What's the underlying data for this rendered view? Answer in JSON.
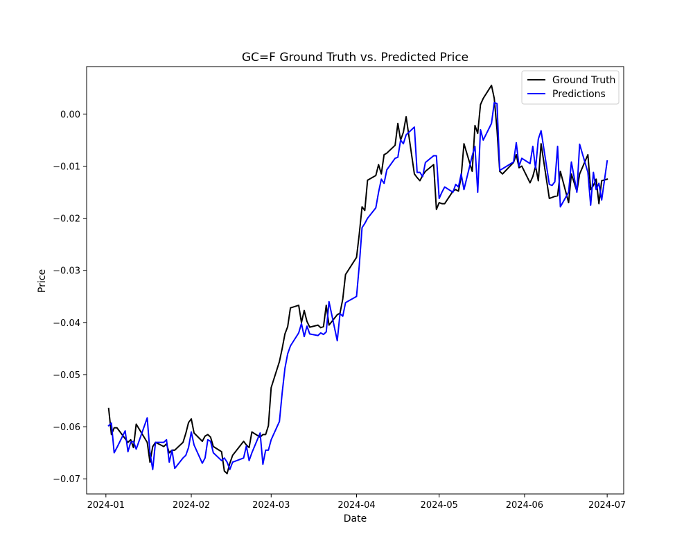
{
  "chart_data": {
    "type": "line",
    "title": "GC=F Ground Truth vs. Predicted Price",
    "xlabel": "Date",
    "ylabel": "Price",
    "xlim": [
      "2023-12-25",
      "2024-07-07"
    ],
    "ylim": [
      -0.0729,
      0.0091
    ],
    "x_ticks": [
      "2024-01-01",
      "2024-02-01",
      "2024-03-01",
      "2024-04-01",
      "2024-05-01",
      "2024-06-01",
      "2024-07-01"
    ],
    "x_tick_labels": [
      "2024-01",
      "2024-02",
      "2024-03",
      "2024-04",
      "2024-05",
      "2024-06",
      "2024-07"
    ],
    "y_ticks": [
      0.0,
      -0.01,
      -0.02,
      -0.03,
      -0.04,
      -0.05,
      -0.06,
      -0.07
    ],
    "y_tick_labels": [
      "0.00",
      "−0.01",
      "−0.02",
      "−0.03",
      "−0.04",
      "−0.05",
      "−0.06",
      "−0.07"
    ],
    "grid": false,
    "legend": "upper right",
    "series": [
      {
        "name": "Ground Truth",
        "color": "#000000",
        "points": [
          [
            "2024-01-02",
            -0.0565
          ],
          [
            "2024-01-03",
            -0.0615
          ],
          [
            "2024-01-04",
            -0.0602
          ],
          [
            "2024-01-05",
            -0.0602
          ],
          [
            "2024-01-08",
            -0.0623
          ],
          [
            "2024-01-09",
            -0.063
          ],
          [
            "2024-01-10",
            -0.0625
          ],
          [
            "2024-01-11",
            -0.064
          ],
          [
            "2024-01-12",
            -0.0595
          ],
          [
            "2024-01-16",
            -0.063
          ],
          [
            "2024-01-17",
            -0.0668
          ],
          [
            "2024-01-18",
            -0.0638
          ],
          [
            "2024-01-19",
            -0.063
          ],
          [
            "2024-01-22",
            -0.0638
          ],
          [
            "2024-01-23",
            -0.0633
          ],
          [
            "2024-01-24",
            -0.065
          ],
          [
            "2024-01-25",
            -0.0645
          ],
          [
            "2024-01-26",
            -0.0645
          ],
          [
            "2024-01-29",
            -0.063
          ],
          [
            "2024-01-30",
            -0.0613
          ],
          [
            "2024-01-31",
            -0.0592
          ],
          [
            "2024-02-01",
            -0.0585
          ],
          [
            "2024-02-02",
            -0.0612
          ],
          [
            "2024-02-05",
            -0.0628
          ],
          [
            "2024-02-06",
            -0.0618
          ],
          [
            "2024-02-07",
            -0.0615
          ],
          [
            "2024-02-08",
            -0.062
          ],
          [
            "2024-02-09",
            -0.0638
          ],
          [
            "2024-02-12",
            -0.0648
          ],
          [
            "2024-02-13",
            -0.0685
          ],
          [
            "2024-02-14",
            -0.069
          ],
          [
            "2024-02-15",
            -0.067
          ],
          [
            "2024-02-16",
            -0.0655
          ],
          [
            "2024-02-20",
            -0.0628
          ],
          [
            "2024-02-21",
            -0.0635
          ],
          [
            "2024-02-22",
            -0.064
          ],
          [
            "2024-02-23",
            -0.061
          ],
          [
            "2024-02-26",
            -0.062
          ],
          [
            "2024-02-27",
            -0.0615
          ],
          [
            "2024-02-28",
            -0.0615
          ],
          [
            "2024-02-29",
            -0.0598
          ],
          [
            "2024-03-01",
            -0.0525
          ],
          [
            "2024-03-04",
            -0.0475
          ],
          [
            "2024-03-05",
            -0.045
          ],
          [
            "2024-03-06",
            -0.0422
          ],
          [
            "2024-03-07",
            -0.0408
          ],
          [
            "2024-03-08",
            -0.0372
          ],
          [
            "2024-03-11",
            -0.0367
          ],
          [
            "2024-03-12",
            -0.04
          ],
          [
            "2024-03-13",
            -0.0377
          ],
          [
            "2024-03-14",
            -0.0398
          ],
          [
            "2024-03-15",
            -0.0409
          ],
          [
            "2024-03-18",
            -0.0405
          ],
          [
            "2024-03-19",
            -0.041
          ],
          [
            "2024-03-20",
            -0.0408
          ],
          [
            "2024-03-21",
            -0.0367
          ],
          [
            "2024-03-22",
            -0.0405
          ],
          [
            "2024-03-25",
            -0.0385
          ],
          [
            "2024-03-26",
            -0.0382
          ],
          [
            "2024-03-27",
            -0.0355
          ],
          [
            "2024-03-28",
            -0.0308
          ],
          [
            "2024-04-01",
            -0.0275
          ],
          [
            "2024-04-02",
            -0.023
          ],
          [
            "2024-04-03",
            -0.0178
          ],
          [
            "2024-04-04",
            -0.0185
          ],
          [
            "2024-04-05",
            -0.0127
          ],
          [
            "2024-04-08",
            -0.0118
          ],
          [
            "2024-04-09",
            -0.0097
          ],
          [
            "2024-04-10",
            -0.0115
          ],
          [
            "2024-04-11",
            -0.0078
          ],
          [
            "2024-04-12",
            -0.0075
          ],
          [
            "2024-04-15",
            -0.006
          ],
          [
            "2024-04-16",
            -0.0018
          ],
          [
            "2024-04-17",
            -0.005
          ],
          [
            "2024-04-18",
            -0.0035
          ],
          [
            "2024-04-19",
            -0.0005
          ],
          [
            "2024-04-22",
            -0.0115
          ],
          [
            "2024-04-23",
            -0.0122
          ],
          [
            "2024-04-24",
            -0.0128
          ],
          [
            "2024-04-25",
            -0.0118
          ],
          [
            "2024-04-26",
            -0.011
          ],
          [
            "2024-04-29",
            -0.0097
          ],
          [
            "2024-04-30",
            -0.0183
          ],
          [
            "2024-05-01",
            -0.017
          ],
          [
            "2024-05-02",
            -0.0172
          ],
          [
            "2024-05-03",
            -0.0172
          ],
          [
            "2024-05-06",
            -0.0148
          ],
          [
            "2024-05-07",
            -0.0145
          ],
          [
            "2024-05-08",
            -0.0148
          ],
          [
            "2024-05-09",
            -0.012
          ],
          [
            "2024-05-10",
            -0.0057
          ],
          [
            "2024-05-13",
            -0.011
          ],
          [
            "2024-05-14",
            -0.0022
          ],
          [
            "2024-05-15",
            -0.0037
          ],
          [
            "2024-05-16",
            0.0018
          ],
          [
            "2024-05-17",
            0.003
          ],
          [
            "2024-05-20",
            0.0055
          ],
          [
            "2024-05-21",
            0.003
          ],
          [
            "2024-05-22",
            -0.003
          ],
          [
            "2024-05-23",
            -0.011
          ],
          [
            "2024-05-24",
            -0.0115
          ],
          [
            "2024-05-28",
            -0.0093
          ],
          [
            "2024-05-29",
            -0.0078
          ],
          [
            "2024-05-30",
            -0.0103
          ],
          [
            "2024-05-31",
            -0.01
          ],
          [
            "2024-06-03",
            -0.0132
          ],
          [
            "2024-06-04",
            -0.012
          ],
          [
            "2024-06-05",
            -0.01
          ],
          [
            "2024-06-06",
            -0.0128
          ],
          [
            "2024-06-07",
            -0.0057
          ],
          [
            "2024-06-10",
            -0.0162
          ],
          [
            "2024-06-11",
            -0.016
          ],
          [
            "2024-06-12",
            -0.0158
          ],
          [
            "2024-06-13",
            -0.0157
          ],
          [
            "2024-06-14",
            -0.011
          ],
          [
            "2024-06-17",
            -0.017
          ],
          [
            "2024-06-18",
            -0.0115
          ],
          [
            "2024-06-20",
            -0.0148
          ],
          [
            "2024-06-21",
            -0.0115
          ],
          [
            "2024-06-24",
            -0.0078
          ],
          [
            "2024-06-25",
            -0.0145
          ],
          [
            "2024-06-26",
            -0.0137
          ],
          [
            "2024-06-27",
            -0.0125
          ],
          [
            "2024-06-28",
            -0.0172
          ],
          [
            "2024-06-29",
            -0.0128
          ],
          [
            "2024-07-01",
            -0.0125
          ]
        ]
      },
      {
        "name": "Predictions",
        "color": "#0000ff",
        "points": [
          [
            "2024-01-02",
            -0.0598
          ],
          [
            "2024-01-03",
            -0.0593
          ],
          [
            "2024-01-04",
            -0.065
          ],
          [
            "2024-01-05",
            -0.064
          ],
          [
            "2024-01-08",
            -0.0608
          ],
          [
            "2024-01-09",
            -0.0648
          ],
          [
            "2024-01-10",
            -0.063
          ],
          [
            "2024-01-11",
            -0.0628
          ],
          [
            "2024-01-12",
            -0.0643
          ],
          [
            "2024-01-16",
            -0.0583
          ],
          [
            "2024-01-17",
            -0.065
          ],
          [
            "2024-01-18",
            -0.0682
          ],
          [
            "2024-01-19",
            -0.063
          ],
          [
            "2024-01-22",
            -0.063
          ],
          [
            "2024-01-23",
            -0.0625
          ],
          [
            "2024-01-24",
            -0.0668
          ],
          [
            "2024-01-25",
            -0.0645
          ],
          [
            "2024-01-26",
            -0.068
          ],
          [
            "2024-01-29",
            -0.066
          ],
          [
            "2024-01-30",
            -0.0655
          ],
          [
            "2024-01-31",
            -0.064
          ],
          [
            "2024-02-01",
            -0.061
          ],
          [
            "2024-02-02",
            -0.0635
          ],
          [
            "2024-02-05",
            -0.067
          ],
          [
            "2024-02-06",
            -0.066
          ],
          [
            "2024-02-07",
            -0.0625
          ],
          [
            "2024-02-08",
            -0.0628
          ],
          [
            "2024-02-09",
            -0.065
          ],
          [
            "2024-02-12",
            -0.0665
          ],
          [
            "2024-02-13",
            -0.066
          ],
          [
            "2024-02-14",
            -0.0668
          ],
          [
            "2024-02-15",
            -0.0682
          ],
          [
            "2024-02-16",
            -0.0668
          ],
          [
            "2024-02-20",
            -0.066
          ],
          [
            "2024-02-21",
            -0.0637
          ],
          [
            "2024-02-22",
            -0.0665
          ],
          [
            "2024-02-23",
            -0.065
          ],
          [
            "2024-02-26",
            -0.0612
          ],
          [
            "2024-02-27",
            -0.0672
          ],
          [
            "2024-02-28",
            -0.0645
          ],
          [
            "2024-02-29",
            -0.0645
          ],
          [
            "2024-03-01",
            -0.0625
          ],
          [
            "2024-03-04",
            -0.059
          ],
          [
            "2024-03-05",
            -0.0535
          ],
          [
            "2024-03-06",
            -0.0488
          ],
          [
            "2024-03-07",
            -0.046
          ],
          [
            "2024-03-08",
            -0.0445
          ],
          [
            "2024-03-11",
            -0.042
          ],
          [
            "2024-03-12",
            -0.0402
          ],
          [
            "2024-03-13",
            -0.0427
          ],
          [
            "2024-03-14",
            -0.0407
          ],
          [
            "2024-03-15",
            -0.0422
          ],
          [
            "2024-03-18",
            -0.0425
          ],
          [
            "2024-03-19",
            -0.042
          ],
          [
            "2024-03-20",
            -0.0423
          ],
          [
            "2024-03-21",
            -0.0418
          ],
          [
            "2024-03-22",
            -0.036
          ],
          [
            "2024-03-25",
            -0.0435
          ],
          [
            "2024-03-26",
            -0.0383
          ],
          [
            "2024-03-27",
            -0.0388
          ],
          [
            "2024-03-28",
            -0.0362
          ],
          [
            "2024-04-01",
            -0.035
          ],
          [
            "2024-04-02",
            -0.029
          ],
          [
            "2024-04-03",
            -0.0218
          ],
          [
            "2024-04-04",
            -0.021
          ],
          [
            "2024-04-05",
            -0.02
          ],
          [
            "2024-04-08",
            -0.018
          ],
          [
            "2024-04-09",
            -0.015
          ],
          [
            "2024-04-10",
            -0.0125
          ],
          [
            "2024-04-11",
            -0.0133
          ],
          [
            "2024-04-12",
            -0.0107
          ],
          [
            "2024-04-15",
            -0.0085
          ],
          [
            "2024-04-16",
            -0.0083
          ],
          [
            "2024-04-17",
            -0.005
          ],
          [
            "2024-04-18",
            -0.0057
          ],
          [
            "2024-04-19",
            -0.004
          ],
          [
            "2024-04-22",
            -0.0025
          ],
          [
            "2024-04-23",
            -0.0112
          ],
          [
            "2024-04-24",
            -0.0112
          ],
          [
            "2024-04-25",
            -0.012
          ],
          [
            "2024-04-26",
            -0.0093
          ],
          [
            "2024-04-29",
            -0.008
          ],
          [
            "2024-04-30",
            -0.008
          ],
          [
            "2024-05-01",
            -0.0162
          ],
          [
            "2024-05-02",
            -0.015
          ],
          [
            "2024-05-03",
            -0.014
          ],
          [
            "2024-05-06",
            -0.015
          ],
          [
            "2024-05-07",
            -0.0135
          ],
          [
            "2024-05-08",
            -0.014
          ],
          [
            "2024-05-09",
            -0.0115
          ],
          [
            "2024-05-10",
            -0.0145
          ],
          [
            "2024-05-13",
            -0.008
          ],
          [
            "2024-05-14",
            -0.0062
          ],
          [
            "2024-05-15",
            -0.015
          ],
          [
            "2024-05-16",
            -0.003
          ],
          [
            "2024-05-17",
            -0.005
          ],
          [
            "2024-05-20",
            -0.0018
          ],
          [
            "2024-05-21",
            0.0022
          ],
          [
            "2024-05-22",
            0.002
          ],
          [
            "2024-05-23",
            -0.0108
          ],
          [
            "2024-05-24",
            -0.0105
          ],
          [
            "2024-05-28",
            -0.0092
          ],
          [
            "2024-05-29",
            -0.0055
          ],
          [
            "2024-05-30",
            -0.01
          ],
          [
            "2024-05-31",
            -0.0085
          ],
          [
            "2024-06-03",
            -0.0095
          ],
          [
            "2024-06-04",
            -0.0062
          ],
          [
            "2024-06-05",
            -0.0105
          ],
          [
            "2024-06-06",
            -0.0048
          ],
          [
            "2024-06-07",
            -0.0032
          ],
          [
            "2024-06-10",
            -0.0135
          ],
          [
            "2024-06-11",
            -0.0137
          ],
          [
            "2024-06-12",
            -0.013
          ],
          [
            "2024-06-13",
            -0.0062
          ],
          [
            "2024-06-14",
            -0.0178
          ],
          [
            "2024-06-17",
            -0.015
          ],
          [
            "2024-06-18",
            -0.0092
          ],
          [
            "2024-06-20",
            -0.015
          ],
          [
            "2024-06-21",
            -0.0058
          ],
          [
            "2024-06-24",
            -0.0112
          ],
          [
            "2024-06-25",
            -0.0175
          ],
          [
            "2024-06-26",
            -0.0112
          ],
          [
            "2024-06-27",
            -0.0145
          ],
          [
            "2024-06-28",
            -0.0133
          ],
          [
            "2024-06-29",
            -0.0165
          ],
          [
            "2024-07-01",
            -0.009
          ]
        ]
      }
    ]
  }
}
